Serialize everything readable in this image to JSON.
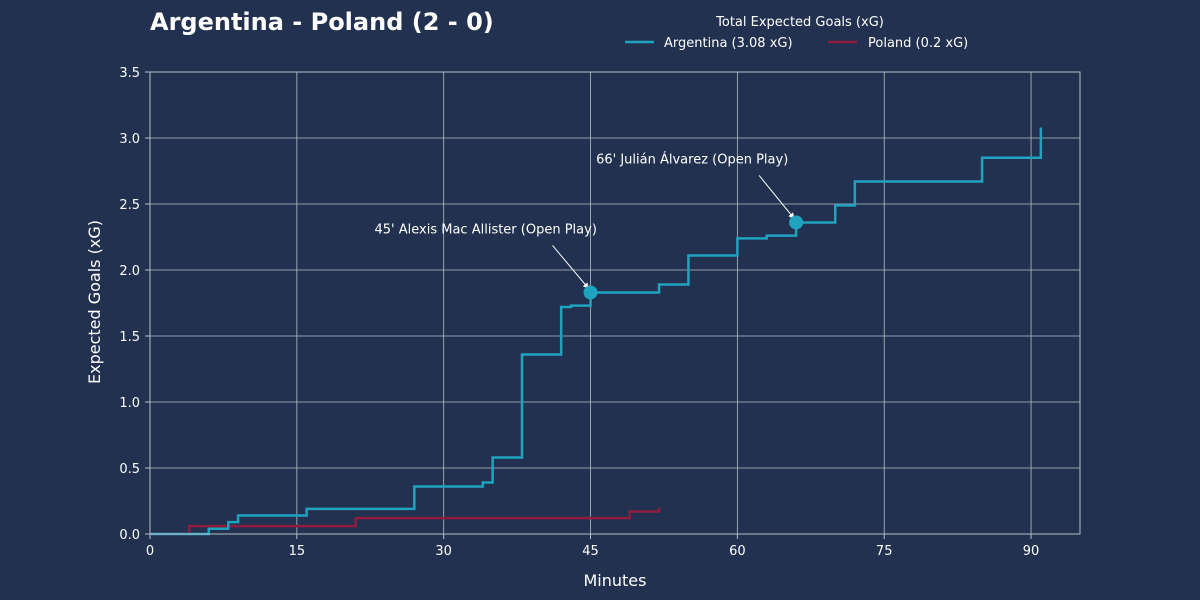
{
  "title": "Argentina - Poland (2 - 0)",
  "legend": {
    "title": "Total Expected Goals (xG)",
    "placement": "top-center",
    "entries": [
      {
        "label": "Argentina (3.08 xG)",
        "color": "#1fa3bf"
      },
      {
        "label": "Poland (0.2 xG)",
        "color": "#8c1d3f"
      }
    ]
  },
  "colors": {
    "background": "#22314f",
    "grid": "#b8bec9",
    "text": "#ffffff"
  },
  "chart_data": {
    "type": "line",
    "step": "post",
    "grid": true,
    "xlabel": "Minutes",
    "ylabel": "Expected Goals (xG)",
    "xlim": [
      0,
      95
    ],
    "ylim": [
      0,
      3.5
    ],
    "xticks": [
      0,
      15,
      30,
      45,
      60,
      75,
      90
    ],
    "yticks": [
      0.0,
      0.5,
      1.0,
      1.5,
      2.0,
      2.5,
      3.0,
      3.5
    ],
    "ytick_labels": [
      "0.0",
      "0.5",
      "1.0",
      "1.5",
      "2.0",
      "2.5",
      "3.0",
      "3.5"
    ],
    "series": [
      {
        "name": "Argentina (3.08 xG)",
        "color": "#1fa3bf",
        "x": [
          0,
          6,
          8,
          9,
          16,
          27,
          34,
          35,
          38,
          42,
          43,
          45,
          52,
          55,
          60,
          63,
          66,
          70,
          72,
          85,
          91
        ],
        "y": [
          0,
          0.04,
          0.09,
          0.14,
          0.19,
          0.36,
          0.39,
          0.58,
          1.36,
          1.72,
          1.73,
          1.83,
          1.89,
          2.11,
          2.24,
          2.26,
          2.36,
          2.49,
          2.67,
          2.85,
          3.08
        ]
      },
      {
        "name": "Poland (0.2 xG)",
        "color": "#8c1d3f",
        "x": [
          0,
          4,
          21,
          49,
          52
        ],
        "y": [
          0,
          0.06,
          0.12,
          0.17,
          0.2
        ]
      }
    ],
    "goals": [
      {
        "minute": 45,
        "xg": 1.83,
        "label": "45' Alexis Mac Allister (Open Play)"
      },
      {
        "minute": 66,
        "xg": 2.36,
        "label": "66' Julián Álvarez (Open Play)"
      }
    ]
  }
}
